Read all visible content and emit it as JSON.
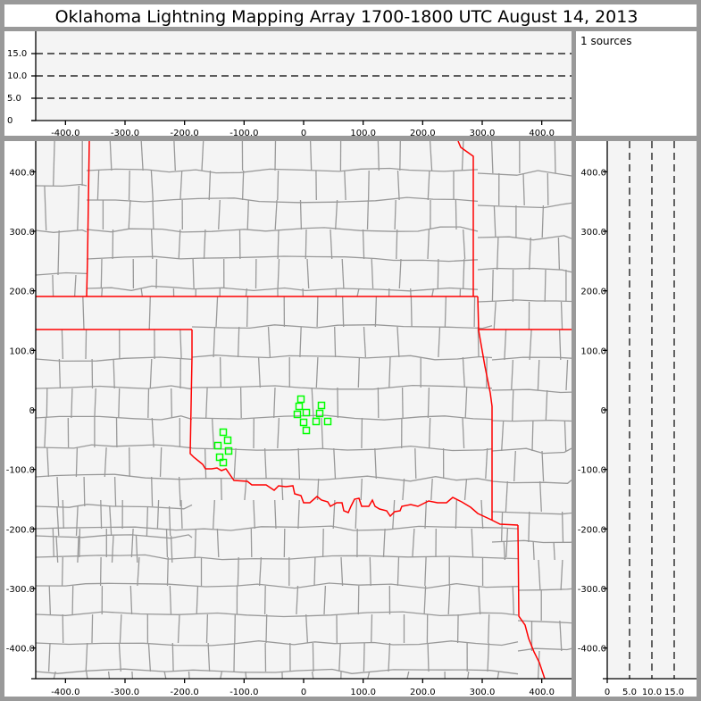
{
  "title": "Oklahoma Lightning Mapping Array   1700-1800 UTC  August 14, 2013",
  "sources_label": "1 sources",
  "colors": {
    "state_border": "#ff0000",
    "county_border": "#999999",
    "source_marker": "#00ff00",
    "plot_background": "#f4f4f4",
    "frame": "#999999"
  },
  "chart_data": {
    "type": "scatter",
    "title": "Oklahoma Lightning Mapping Array   1700-1800 UTC  August 14, 2013",
    "plan_view": {
      "xlim": [
        -450,
        450
      ],
      "ylim": [
        -450,
        450
      ],
      "x_ticks": [
        {
          "v": -400,
          "label": "-400.0"
        },
        {
          "v": -300,
          "label": "-300.0"
        },
        {
          "v": -200,
          "label": "-200.0"
        },
        {
          "v": -100,
          "label": "-100.0"
        },
        {
          "v": 0,
          "label": "0"
        },
        {
          "v": 100,
          "label": "100.0"
        },
        {
          "v": 200,
          "label": "200.0"
        },
        {
          "v": 300,
          "label": "300.0"
        },
        {
          "v": 400,
          "label": "400.0"
        }
      ],
      "y_ticks": [
        {
          "v": 400,
          "label": "400.0"
        },
        {
          "v": 300,
          "label": "300.0"
        },
        {
          "v": 200,
          "label": "200.0"
        },
        {
          "v": 100,
          "label": "100.0"
        },
        {
          "v": 0,
          "label": "0"
        },
        {
          "v": -100,
          "label": "-100.0"
        },
        {
          "v": -200,
          "label": "-200.0"
        },
        {
          "v": -300,
          "label": "-300.0"
        },
        {
          "v": -400,
          "label": "-400.0"
        }
      ],
      "points": [
        {
          "x": -4.5,
          "y": 18
        },
        {
          "x": -7.5,
          "y": 6
        },
        {
          "x": 30,
          "y": 7.5
        },
        {
          "x": -10.5,
          "y": -7.5
        },
        {
          "x": 4.5,
          "y": -4.5
        },
        {
          "x": 27,
          "y": -6
        },
        {
          "x": 0,
          "y": -21
        },
        {
          "x": 21,
          "y": -19.5
        },
        {
          "x": 40.5,
          "y": -19.5
        },
        {
          "x": 4.5,
          "y": -34.5
        },
        {
          "x": -135,
          "y": -37.5
        },
        {
          "x": -127.5,
          "y": -51
        },
        {
          "x": -144,
          "y": -60
        },
        {
          "x": -126,
          "y": -69
        },
        {
          "x": -141,
          "y": -79.5
        },
        {
          "x": -135,
          "y": -88.5
        }
      ]
    },
    "alt_vs_x": {
      "xlim": [
        -450,
        450
      ],
      "ylim": [
        0,
        20
      ],
      "y_ticks": [
        {
          "v": 15,
          "label": "15.0"
        },
        {
          "v": 10,
          "label": "10.0"
        },
        {
          "v": 5,
          "label": "5.0"
        },
        {
          "v": 0,
          "label": "0"
        }
      ],
      "dashed_levels": [
        5,
        10,
        15
      ]
    },
    "alt_vs_y": {
      "xlim": [
        0,
        20
      ],
      "ylim": [
        -450,
        450
      ],
      "x_ticks": [
        {
          "v": 0,
          "label": "0"
        },
        {
          "v": 5,
          "label": "5.0"
        },
        {
          "v": 10,
          "label": "10.0"
        },
        {
          "v": 15,
          "label": "15.0"
        }
      ],
      "dashed_levels": [
        5,
        10,
        15
      ]
    }
  }
}
